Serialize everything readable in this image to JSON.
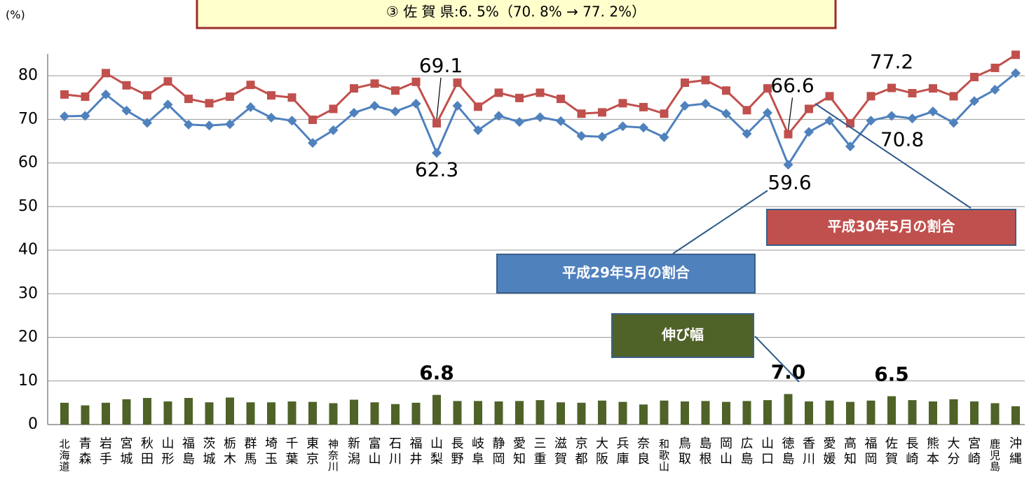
{
  "chart_data": {
    "type": "combo",
    "title": "③ 佐 賀 県:6. 5%（70. 8% → 77. 2%）",
    "y_label": "(%)",
    "categories": [
      "北海道",
      "青森",
      "岩手",
      "宮城",
      "秋田",
      "山形",
      "福島",
      "茨城",
      "栃木",
      "群馬",
      "埼玉",
      "千葉",
      "東京",
      "神奈川",
      "新潟",
      "富山",
      "石川",
      "福井",
      "山梨",
      "長野",
      "岐阜",
      "静岡",
      "愛知",
      "三重",
      "滋賀",
      "京都",
      "大阪",
      "兵庫",
      "奈良",
      "和歌山",
      "鳥取",
      "島根",
      "岡山",
      "広島",
      "山口",
      "徳島",
      "香川",
      "愛媛",
      "高知",
      "福岡",
      "佐賀",
      "長崎",
      "熊本",
      "大分",
      "宮崎",
      "鹿児島",
      "沖縄"
    ],
    "series": [
      {
        "name": "平成30年5月の割合",
        "type": "line",
        "marker": "square",
        "color": "#c0504d",
        "values": [
          75.7,
          75.2,
          80.6,
          77.8,
          75.5,
          78.7,
          74.7,
          73.7,
          75.2,
          77.9,
          75.5,
          75.0,
          69.9,
          72.4,
          77.1,
          78.2,
          76.6,
          78.6,
          69.1,
          78.4,
          72.9,
          76.1,
          74.9,
          76.1,
          74.7,
          71.3,
          71.6,
          73.7,
          72.8,
          71.3,
          78.4,
          79.0,
          76.6,
          72.1,
          77.1,
          66.6,
          72.4,
          75.3,
          69.1,
          75.3,
          77.2,
          76.0,
          77.1,
          75.3,
          79.7,
          81.8,
          84.8
        ],
        "value_labels": [
          null,
          null,
          null,
          null,
          null,
          null,
          null,
          null,
          null,
          null,
          null,
          null,
          null,
          null,
          null,
          null,
          null,
          null,
          "69.1",
          null,
          null,
          null,
          null,
          null,
          null,
          null,
          null,
          null,
          null,
          null,
          null,
          null,
          null,
          null,
          null,
          "66.6",
          null,
          null,
          null,
          null,
          "77.2",
          null,
          null,
          null,
          null,
          null,
          null
        ]
      },
      {
        "name": "平成29年5月の割合",
        "type": "line",
        "marker": "diamond",
        "color": "#4f81bd",
        "values": [
          70.7,
          70.8,
          75.7,
          72.0,
          69.2,
          73.4,
          68.8,
          68.6,
          68.9,
          72.8,
          70.4,
          69.7,
          64.6,
          67.5,
          71.5,
          73.1,
          71.8,
          73.6,
          62.3,
          73.1,
          67.5,
          70.8,
          69.4,
          70.5,
          69.6,
          66.2,
          66.0,
          68.4,
          68.1,
          65.9,
          73.1,
          73.6,
          71.3,
          66.7,
          71.5,
          59.6,
          67.1,
          69.7,
          63.8,
          69.7,
          70.8,
          70.2,
          71.8,
          69.2,
          74.2,
          76.8,
          80.6
        ],
        "value_labels": [
          null,
          null,
          null,
          null,
          null,
          null,
          null,
          null,
          null,
          null,
          null,
          null,
          null,
          null,
          null,
          null,
          null,
          null,
          "62.3",
          null,
          null,
          null,
          null,
          null,
          null,
          null,
          null,
          null,
          null,
          null,
          null,
          null,
          null,
          null,
          null,
          "59.6",
          null,
          null,
          null,
          null,
          "70.8",
          null,
          null,
          null,
          null,
          null,
          null
        ]
      },
      {
        "name": "伸び幅",
        "type": "bar",
        "color": "#4f6228",
        "values": [
          5.0,
          4.4,
          5.0,
          5.8,
          6.1,
          5.3,
          6.1,
          5.1,
          6.2,
          5.1,
          5.1,
          5.3,
          5.2,
          4.9,
          5.7,
          5.1,
          4.7,
          5.0,
          6.8,
          5.4,
          5.4,
          5.3,
          5.4,
          5.6,
          5.1,
          5.0,
          5.5,
          5.2,
          4.6,
          5.5,
          5.3,
          5.4,
          5.2,
          5.4,
          5.6,
          7.0,
          5.3,
          5.5,
          5.2,
          5.5,
          6.5,
          5.6,
          5.3,
          5.8,
          5.3,
          4.9,
          4.2
        ],
        "value_labels": [
          null,
          null,
          null,
          null,
          null,
          null,
          null,
          null,
          null,
          null,
          null,
          null,
          null,
          null,
          null,
          null,
          null,
          null,
          "6.8",
          null,
          null,
          null,
          null,
          null,
          null,
          null,
          null,
          null,
          null,
          null,
          null,
          null,
          null,
          null,
          null,
          "7.0",
          null,
          null,
          null,
          null,
          "6.5",
          null,
          null,
          null,
          null,
          null,
          null
        ]
      }
    ],
    "ylim": [
      0,
      85
    ],
    "yticks": [
      0,
      10,
      20,
      30,
      40,
      50,
      60,
      70,
      80
    ],
    "grid": true
  }
}
